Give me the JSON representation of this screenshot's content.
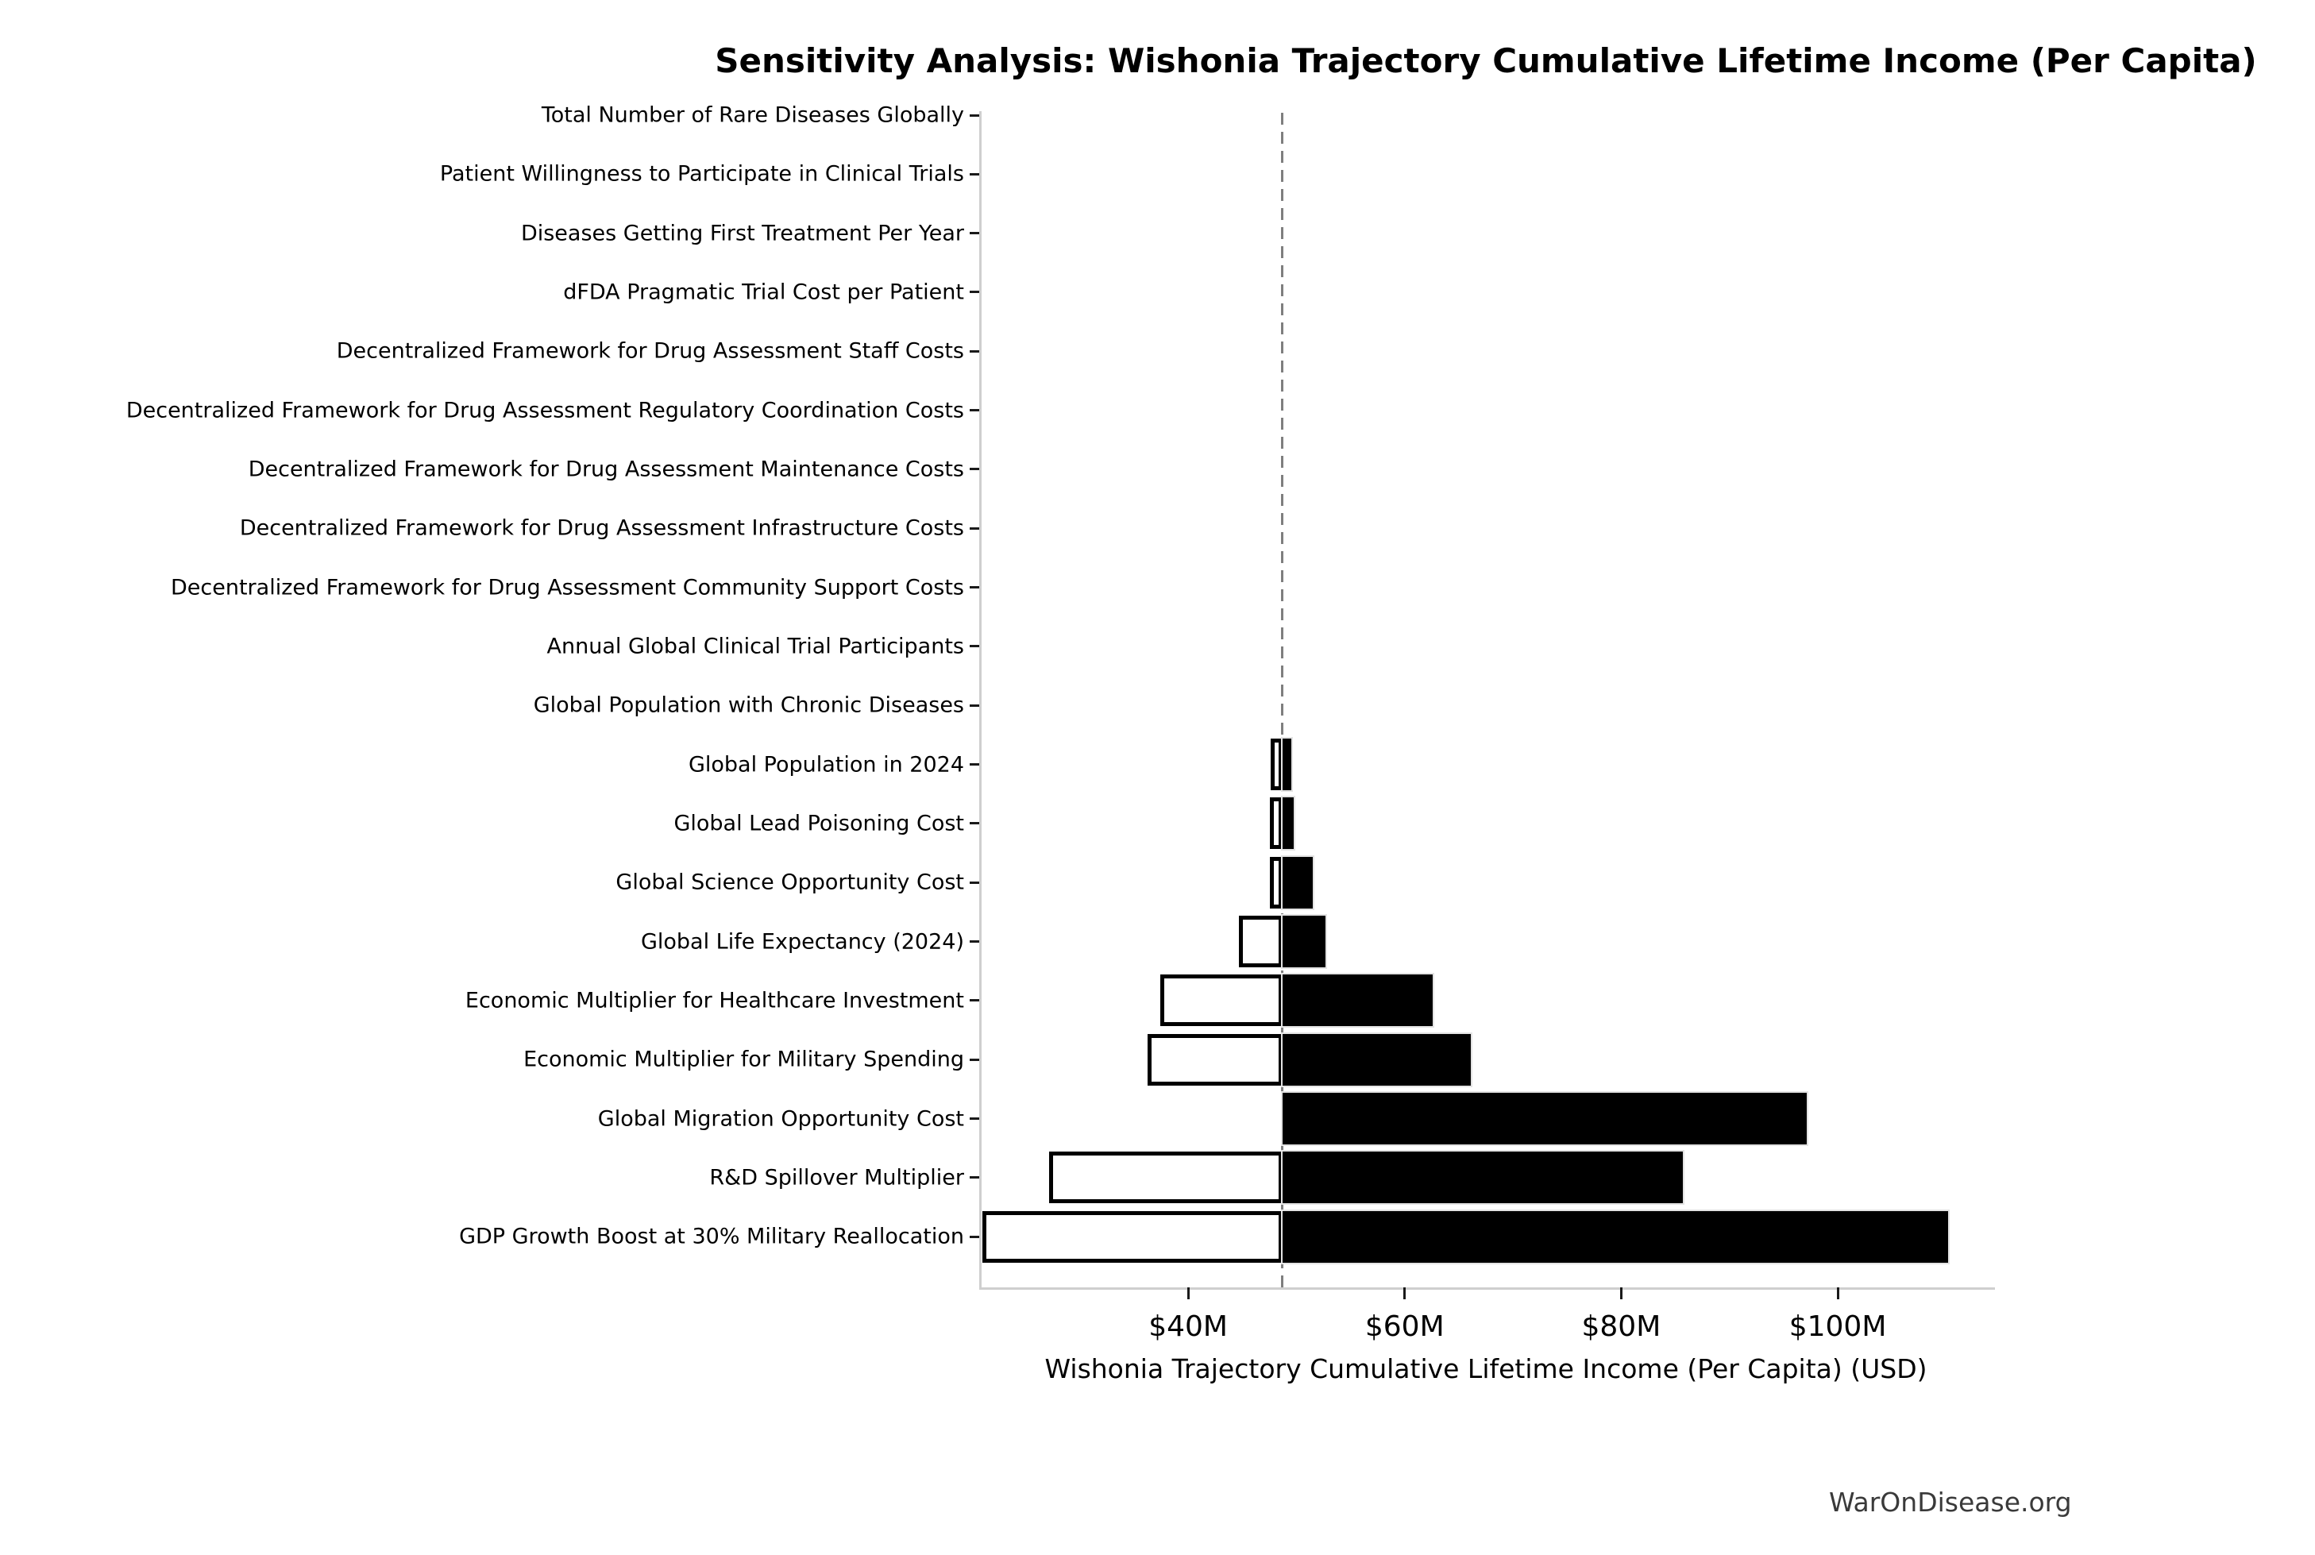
{
  "title": "Sensitivity Analysis: Wishonia Trajectory Cumulative Lifetime Income (Per Capita)",
  "watermark": "WarOnDisease.org",
  "chart_data": {
    "type": "bar",
    "subtype": "tornado-sensitivity",
    "title": "Sensitivity Analysis: Wishonia Trajectory Cumulative Lifetime Income (Per Capita)",
    "xlabel": "Wishonia Trajectory Cumulative Lifetime Income (Per Capita) (USD)",
    "value_unit": "million USD",
    "baseline_value": 48.5,
    "xlim": [
      20.7,
      114.3
    ],
    "grid": false,
    "legend_position": "none",
    "xticks": [
      {
        "value": 40,
        "label": "$40M"
      },
      {
        "value": 60,
        "label": "$60M"
      },
      {
        "value": 80,
        "label": "$80M"
      },
      {
        "value": 100,
        "label": "$100M"
      }
    ],
    "rows": [
      {
        "label": "Total Number of Rare Diseases Globally",
        "low": 48.5,
        "high": 48.5
      },
      {
        "label": "Patient Willingness to Participate in Clinical Trials",
        "low": 48.5,
        "high": 48.5
      },
      {
        "label": "Diseases Getting First Treatment Per Year",
        "low": 48.5,
        "high": 48.5
      },
      {
        "label": "dFDA Pragmatic Trial Cost per Patient",
        "low": 48.5,
        "high": 48.5
      },
      {
        "label": "Decentralized Framework for Drug Assessment Staff Costs",
        "low": 48.5,
        "high": 48.5
      },
      {
        "label": "Decentralized Framework for Drug Assessment Regulatory Coordination Costs",
        "low": 48.5,
        "high": 48.5
      },
      {
        "label": "Decentralized Framework for Drug Assessment Maintenance Costs",
        "low": 48.5,
        "high": 48.5
      },
      {
        "label": "Decentralized Framework for Drug Assessment Infrastructure Costs",
        "low": 48.5,
        "high": 48.5
      },
      {
        "label": "Decentralized Framework for Drug Assessment Community Support Costs",
        "low": 48.5,
        "high": 48.5
      },
      {
        "label": "Annual Global Clinical Trial Participants",
        "low": 48.5,
        "high": 48.5
      },
      {
        "label": "Global Population with Chronic Diseases",
        "low": 48.5,
        "high": 48.5
      },
      {
        "label": "Global Population in 2024",
        "low": 47.4,
        "high": 49.3
      },
      {
        "label": "Global Lead Poisoning Cost",
        "low": 47.3,
        "high": 49.5
      },
      {
        "label": "Global Science Opportunity Cost",
        "low": 47.3,
        "high": 51.3
      },
      {
        "label": "Global Life Expectancy (2024)",
        "low": 44.5,
        "high": 52.5
      },
      {
        "label": "Economic Multiplier for Healthcare Investment",
        "low": 37.2,
        "high": 62.4
      },
      {
        "label": "Economic Multiplier for Military Spending",
        "low": 36.0,
        "high": 65.9
      },
      {
        "label": "Global Migration Opportunity Cost",
        "low": 48.5,
        "high": 96.9
      },
      {
        "label": "R&D Spillover Multiplier",
        "low": 26.9,
        "high": 85.5
      },
      {
        "label": "GDP Growth Boost at 30% Military Reallocation",
        "low": 20.8,
        "high": 110.0
      }
    ],
    "colors": {
      "bar_high_fill": "#000000",
      "bar_low_fill": "#ffffff",
      "bar_low_edge": "#000000",
      "baseline_dash": "#7f7f7f",
      "axis_spine": "#cfcfcf",
      "text": "#000000",
      "watermark_text": "#3a3a3a"
    }
  }
}
